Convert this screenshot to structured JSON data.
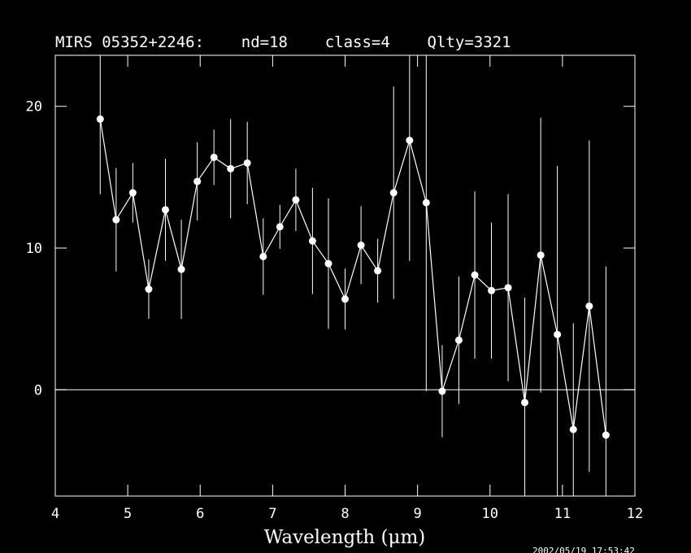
{
  "chart_data": {
    "type": "line",
    "title": "MIRS 05352+2246:    nd=18    class=4    Qlty=3321",
    "x_label": "Wavelength (μm)",
    "timestamp": "2002/05/19 17:53:42",
    "xlim": [
      4,
      12
    ],
    "xticks": [
      4,
      5,
      6,
      7,
      8,
      9,
      10,
      11,
      12
    ],
    "ylim": [
      -7.5,
      23.6
    ],
    "yticks": [
      0,
      10,
      20
    ],
    "zero_line": true,
    "series": [
      {
        "color": "#ffffff",
        "x": [
          4.62,
          4.84,
          5.07,
          5.29,
          5.52,
          5.74,
          5.96,
          6.19,
          6.42,
          6.65,
          6.87,
          7.1,
          7.32,
          7.55,
          7.77,
          8.0,
          8.22,
          8.45,
          8.67,
          8.89,
          9.12,
          9.34,
          9.57,
          9.79,
          10.02,
          10.25,
          10.48,
          10.7,
          10.93,
          11.15,
          11.37,
          11.6
        ],
        "values": [
          19.1,
          12.0,
          13.9,
          7.1,
          12.7,
          8.5,
          14.7,
          16.4,
          15.6,
          16.0,
          9.4,
          11.5,
          13.4,
          10.5,
          8.9,
          6.4,
          10.2,
          8.4,
          13.9,
          17.6,
          13.2,
          -0.1,
          3.5,
          8.1,
          7.0,
          7.2,
          -0.9,
          9.5,
          3.9,
          -2.8,
          5.9,
          -3.2
        ],
        "errors": [
          5.3,
          3.65,
          2.1,
          2.1,
          3.6,
          3.5,
          2.75,
          1.95,
          3.5,
          2.9,
          2.7,
          1.55,
          2.2,
          3.75,
          4.6,
          2.15,
          2.75,
          2.25,
          7.5,
          8.5,
          13.3,
          3.25,
          4.5,
          5.9,
          4.8,
          6.6,
          7.4,
          9.7,
          11.9,
          7.5,
          11.7,
          11.9
        ]
      }
    ]
  }
}
